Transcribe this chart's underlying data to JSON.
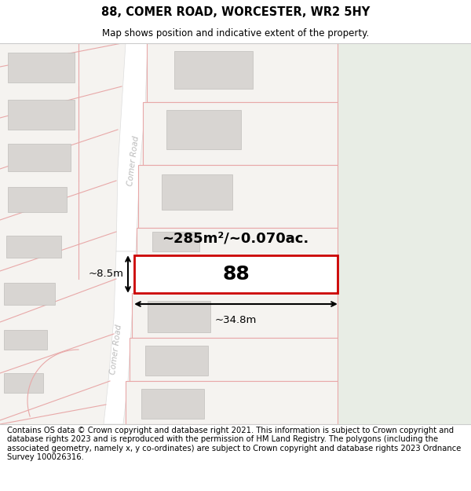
{
  "title": "88, COMER ROAD, WORCESTER, WR2 5HY",
  "subtitle": "Map shows position and indicative extent of the property.",
  "footer": "Contains OS data © Crown copyright and database right 2021. This information is subject to Crown copyright and database rights 2023 and is reproduced with the permission of HM Land Registry. The polygons (including the associated geometry, namely x, y co-ordinates) are subject to Crown copyright and database rights 2023 Ordnance Survey 100026316.",
  "bg_main": "#f5f3f0",
  "bg_right_green": "#e8ede5",
  "road_fill": "#ffffff",
  "road_edge": "#cccccc",
  "parcel_edge": "#e8a8a8",
  "building_fill": "#d8d5d2",
  "building_edge": "#c0bebb",
  "highlight_fill": "#ffffff",
  "highlight_stroke": "#cc0000",
  "road_label_color": "#bbbbbb",
  "area_text": "~285m²/~0.070ac.",
  "width_text": "~34.8m",
  "height_text": "~8.5m",
  "property_label": "88",
  "title_fontsize": 10.5,
  "subtitle_fontsize": 8.5,
  "footer_fontsize": 7.2
}
